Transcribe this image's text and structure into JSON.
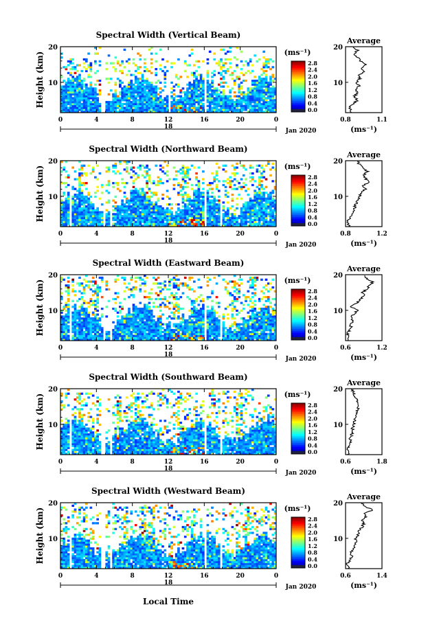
{
  "figure": {
    "x_label": "Local Time",
    "date_label": "Jan 2020",
    "day_label": "18"
  },
  "chart_data": [
    {
      "type": "heatmap",
      "title": "Spectral Width (Vertical Beam)",
      "ylabel": "Height (km)",
      "xlim": [
        0,
        24
      ],
      "ylim": [
        1.5,
        20
      ],
      "x_ticks": [
        "0",
        "4",
        "8",
        "12",
        "16",
        "20",
        "0"
      ],
      "y_ticks": [
        "10",
        "20"
      ],
      "colorbar": {
        "unit": "(ms⁻¹)",
        "ticks": [
          "2.8",
          "2.4",
          "2.0",
          "1.6",
          "1.2",
          "0.8",
          "0.4",
          "0.0"
        ],
        "range": [
          0,
          2.8
        ]
      },
      "gaps_hours": [
        [
          4.6,
          4.9
        ],
        [
          11.9,
          12.2
        ],
        [
          15.9,
          16.3
        ]
      ],
      "noise_top_hours": [
        [
          1.0,
          1.6
        ],
        [
          3.2,
          3.5
        ],
        [
          6.5,
          6.8
        ],
        [
          17.8,
          18.3
        ],
        [
          20.0,
          20.3
        ],
        [
          22.5,
          23.0
        ]
      ],
      "top_km": 17,
      "average": {
        "title": "Average",
        "xlabel": "(ms⁻¹)",
        "xlim": [
          0.8,
          1.1
        ],
        "x_ticks": [
          "0.8",
          "1.1"
        ],
        "y_ticks": [
          "10",
          "20"
        ],
        "profile": [
          [
            1.5,
            0.85
          ],
          [
            3,
            0.83
          ],
          [
            4,
            0.86
          ],
          [
            5,
            0.9
          ],
          [
            6,
            0.87
          ],
          [
            7,
            0.9
          ],
          [
            8,
            0.88
          ],
          [
            9,
            0.91
          ],
          [
            10,
            0.89
          ],
          [
            11,
            0.92
          ],
          [
            12,
            0.9
          ],
          [
            13,
            0.95
          ],
          [
            14,
            0.93
          ],
          [
            15,
            0.97
          ],
          [
            16,
            0.92
          ],
          [
            17,
            0.9
          ],
          [
            18,
            0.87
          ],
          [
            19,
            0.9
          ],
          [
            20,
            0.86
          ]
        ]
      }
    },
    {
      "type": "heatmap",
      "title": "Spectral Width (Northward Beam)",
      "ylabel": "Height (km)",
      "xlim": [
        0,
        24
      ],
      "ylim": [
        1.5,
        20
      ],
      "x_ticks": [
        "0",
        "4",
        "8",
        "12",
        "16",
        "20",
        "0"
      ],
      "y_ticks": [
        "10",
        "20"
      ],
      "colorbar": {
        "unit": "(ms⁻¹)",
        "ticks": [
          "2.8",
          "2.4",
          "2.0",
          "1.6",
          "1.2",
          "0.8",
          "0.4",
          "0.0"
        ],
        "range": [
          0,
          2.8
        ]
      },
      "gaps_hours": [
        [
          1.0,
          1.3
        ],
        [
          4.8,
          5.0
        ],
        [
          5.6,
          5.8
        ],
        [
          11.9,
          12.1
        ],
        [
          15.9,
          16.3
        ],
        [
          17.8,
          18.0
        ]
      ],
      "noise_top_hours": [
        [
          2.0,
          2.5
        ],
        [
          9.5,
          10.0
        ],
        [
          13.5,
          14.2
        ],
        [
          22.0,
          22.8
        ]
      ],
      "top_km": 19,
      "average": {
        "title": "Average",
        "xlabel": "(ms⁻¹)",
        "xlim": [
          0.8,
          1.2
        ],
        "x_ticks": [
          "0.8",
          "1.2"
        ],
        "y_ticks": [
          "10",
          "20"
        ],
        "profile": [
          [
            1.5,
            0.84
          ],
          [
            3,
            0.82
          ],
          [
            4,
            0.85
          ],
          [
            5,
            0.87
          ],
          [
            6,
            0.89
          ],
          [
            7,
            0.9
          ],
          [
            8,
            0.92
          ],
          [
            9,
            0.94
          ],
          [
            10,
            0.95
          ],
          [
            11,
            0.97
          ],
          [
            12,
            1.02
          ],
          [
            13,
            1.0
          ],
          [
            14,
            1.05
          ],
          [
            15,
            1.02
          ],
          [
            16,
            1.0
          ],
          [
            17,
            1.04
          ],
          [
            18,
            0.98
          ],
          [
            19,
            0.95
          ],
          [
            20,
            0.93
          ]
        ]
      }
    },
    {
      "type": "heatmap",
      "title": "Spectral Width (Eastward Beam)",
      "ylabel": "Height (km)",
      "xlim": [
        0,
        24
      ],
      "ylim": [
        1.5,
        20
      ],
      "x_ticks": [
        "0",
        "4",
        "8",
        "12",
        "16",
        "20",
        "0"
      ],
      "y_ticks": [
        "10",
        "20"
      ],
      "colorbar": {
        "unit": "(ms⁻¹)",
        "ticks": [
          "2.8",
          "2.4",
          "2.0",
          "1.6",
          "1.2",
          "0.8",
          "0.4",
          "0.0"
        ],
        "range": [
          0,
          2.8
        ]
      },
      "gaps_hours": [
        [
          1.0,
          1.3
        ],
        [
          4.8,
          5.0
        ],
        [
          5.6,
          5.8
        ],
        [
          11.9,
          12.1
        ],
        [
          15.9,
          16.3
        ],
        [
          17.8,
          18.0
        ]
      ],
      "noise_top_hours": [
        [
          0.5,
          1.2
        ],
        [
          3.5,
          4.2
        ],
        [
          12.5,
          13.2
        ],
        [
          19.0,
          19.5
        ],
        [
          21.0,
          21.8
        ]
      ],
      "top_km": 19.5,
      "average": {
        "title": "Average",
        "xlabel": "(ms⁻¹)",
        "xlim": [
          0.6,
          1.2
        ],
        "x_ticks": [
          "0.6",
          "1.2"
        ],
        "y_ticks": [
          "10",
          "20"
        ],
        "profile": [
          [
            1.5,
            0.66
          ],
          [
            3,
            0.63
          ],
          [
            4,
            0.65
          ],
          [
            5,
            0.7
          ],
          [
            6,
            0.68
          ],
          [
            7,
            0.72
          ],
          [
            8,
            0.7
          ],
          [
            9,
            0.74
          ],
          [
            10,
            0.8
          ],
          [
            11,
            0.68
          ],
          [
            12,
            0.78
          ],
          [
            13,
            0.85
          ],
          [
            14,
            0.9
          ],
          [
            15,
            0.88
          ],
          [
            16,
            0.95
          ],
          [
            17,
            1.0
          ],
          [
            18,
            1.05
          ],
          [
            19,
            0.95
          ],
          [
            20,
            0.9
          ]
        ]
      }
    },
    {
      "type": "heatmap",
      "title": "Spectral Width (Southward Beam)",
      "ylabel": "Height (km)",
      "xlim": [
        0,
        24
      ],
      "ylim": [
        1.5,
        20
      ],
      "x_ticks": [
        "0",
        "4",
        "8",
        "12",
        "16",
        "20",
        "0"
      ],
      "y_ticks": [
        "10",
        "20"
      ],
      "colorbar": {
        "unit": "(ms⁻¹)",
        "ticks": [
          "2.8",
          "2.4",
          "2.0",
          "1.6",
          "1.2",
          "0.8",
          "0.4",
          "0.0"
        ],
        "range": [
          0,
          2.8
        ]
      },
      "gaps_hours": [
        [
          1.0,
          1.3
        ],
        [
          4.6,
          4.9
        ],
        [
          5.6,
          5.8
        ],
        [
          11.9,
          12.1
        ],
        [
          15.9,
          16.3
        ],
        [
          17.8,
          18.0
        ]
      ],
      "noise_top_hours": [
        [
          2.0,
          2.6
        ],
        [
          6.2,
          6.8
        ],
        [
          8.2,
          8.8
        ],
        [
          13.0,
          13.5
        ],
        [
          19.5,
          20.2
        ]
      ],
      "top_km": 19,
      "average": {
        "title": "Average",
        "xlabel": "(ms⁻¹)",
        "xlim": [
          0.6,
          1.8
        ],
        "x_ticks": [
          "0.6",
          "1.8"
        ],
        "y_ticks": [
          "10",
          "20"
        ],
        "profile": [
          [
            1.5,
            0.68
          ],
          [
            3,
            0.66
          ],
          [
            4,
            0.72
          ],
          [
            5,
            0.78
          ],
          [
            6,
            0.74
          ],
          [
            7,
            0.8
          ],
          [
            8,
            0.85
          ],
          [
            9,
            0.82
          ],
          [
            10,
            0.88
          ],
          [
            11,
            0.9
          ],
          [
            12,
            0.95
          ],
          [
            13,
            1.0
          ],
          [
            14,
            0.98
          ],
          [
            15,
            1.05
          ],
          [
            16,
            1.0
          ],
          [
            17,
            0.95
          ],
          [
            18,
            0.9
          ],
          [
            19,
            0.85
          ],
          [
            20,
            0.8
          ]
        ]
      }
    },
    {
      "type": "heatmap",
      "title": "Spectral Width (Westward Beam)",
      "ylabel": "Height (km)",
      "xlim": [
        0,
        24
      ],
      "ylim": [
        1.5,
        20
      ],
      "x_ticks": [
        "0",
        "4",
        "8",
        "12",
        "16",
        "20",
        "0"
      ],
      "y_ticks": [
        "10",
        "20"
      ],
      "colorbar": {
        "unit": "(ms⁻¹)",
        "ticks": [
          "2.8",
          "2.4",
          "2.0",
          "1.6",
          "1.2",
          "0.8",
          "0.4",
          "0.0"
        ],
        "range": [
          0,
          2.8
        ]
      },
      "gaps_hours": [
        [
          1.0,
          1.3
        ],
        [
          4.6,
          4.9
        ],
        [
          5.6,
          5.8
        ],
        [
          11.9,
          12.1
        ],
        [
          15.9,
          16.3
        ],
        [
          17.8,
          18.0
        ]
      ],
      "noise_top_hours": [
        [
          7.0,
          7.6
        ],
        [
          9.0,
          9.6
        ],
        [
          10.0,
          10.6
        ],
        [
          14.5,
          15.0
        ],
        [
          20.5,
          21.0
        ]
      ],
      "top_km": 19,
      "average": {
        "title": "Average",
        "xlabel": "(ms⁻¹)",
        "xlim": [
          0.6,
          1.4
        ],
        "x_ticks": [
          "0.6",
          "1.4"
        ],
        "y_ticks": [
          "10",
          "20"
        ],
        "profile": [
          [
            1.5,
            0.66
          ],
          [
            3,
            0.64
          ],
          [
            4,
            0.7
          ],
          [
            5,
            0.74
          ],
          [
            6,
            0.72
          ],
          [
            7,
            0.78
          ],
          [
            8,
            0.8
          ],
          [
            9,
            0.84
          ],
          [
            10,
            0.82
          ],
          [
            11,
            0.88
          ],
          [
            12,
            0.9
          ],
          [
            13,
            0.95
          ],
          [
            14,
            1.0
          ],
          [
            15,
            0.98
          ],
          [
            16,
            1.05
          ],
          [
            17,
            1.0
          ],
          [
            18,
            1.2
          ],
          [
            19,
            1.02
          ],
          [
            20,
            0.95
          ]
        ]
      }
    }
  ]
}
